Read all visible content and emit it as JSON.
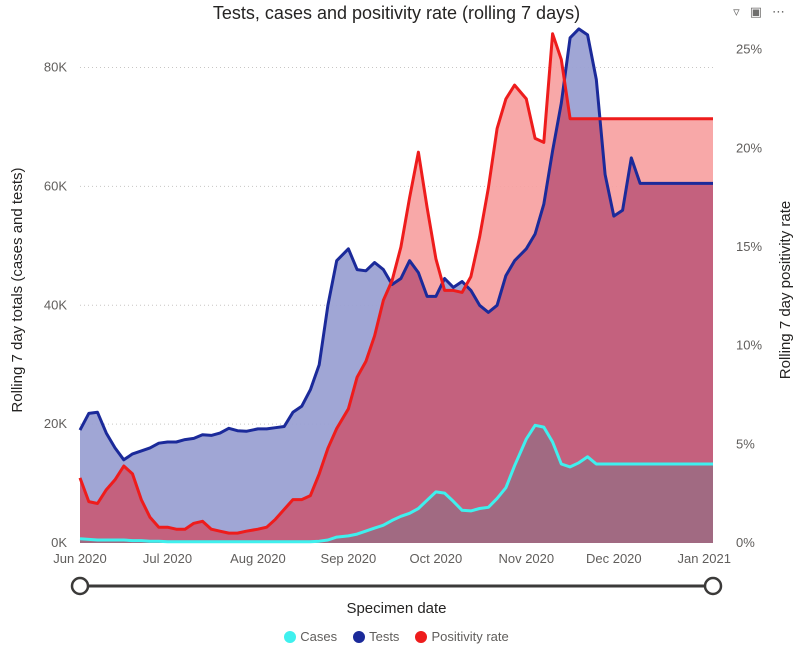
{
  "header": {
    "title": "Tests, cases and positivity rate (rolling 7 days)",
    "icons": [
      "filter-icon",
      "focus-mode-icon",
      "more-options-icon"
    ]
  },
  "colors": {
    "cases": "#3ff0ee",
    "tests": "#1b2a9a",
    "positivity": "#ee1c1c",
    "tests_fill": "#9ba1d3",
    "positivity_fill": "#f79f9f"
  },
  "chart_data": {
    "type": "area",
    "title": "Tests, cases and positivity rate (rolling 7 days)",
    "xlabel": "Specimen date",
    "ylabel_left": "Rolling 7 day totals (cases and tests)",
    "ylabel_right": "Rolling 7 day positivity rate",
    "x_ticks": [
      "Jun 2020",
      "Jul 2020",
      "Aug 2020",
      "Sep 2020",
      "Oct 2020",
      "Nov 2020",
      "Dec 2020",
      "Jan 2021"
    ],
    "x_tick_dates": [
      "2020-06-01",
      "2020-07-01",
      "2020-08-01",
      "2020-09-01",
      "2020-10-01",
      "2020-11-01",
      "2020-12-01",
      "2021-01-01"
    ],
    "y_left_ticks": [
      "0K",
      "20K",
      "40K",
      "60K",
      "80K"
    ],
    "y_left_range": [
      0,
      88000
    ],
    "y_right_ticks": [
      "0%",
      "5%",
      "10%",
      "15%",
      "20%",
      "25%"
    ],
    "y_right_range": [
      0,
      26.5
    ],
    "grid": true,
    "legend_position": "bottom-center",
    "dates": [
      "2020-06-01",
      "2020-06-04",
      "2020-06-07",
      "2020-06-10",
      "2020-06-13",
      "2020-06-16",
      "2020-06-19",
      "2020-06-22",
      "2020-06-25",
      "2020-06-28",
      "2020-07-01",
      "2020-07-04",
      "2020-07-07",
      "2020-07-10",
      "2020-07-13",
      "2020-07-16",
      "2020-07-19",
      "2020-07-22",
      "2020-07-25",
      "2020-07-28",
      "2020-08-01",
      "2020-08-04",
      "2020-08-07",
      "2020-08-10",
      "2020-08-13",
      "2020-08-16",
      "2020-08-19",
      "2020-08-22",
      "2020-08-25",
      "2020-08-28",
      "2020-09-01",
      "2020-09-04",
      "2020-09-07",
      "2020-09-10",
      "2020-09-13",
      "2020-09-16",
      "2020-09-19",
      "2020-09-22",
      "2020-09-25",
      "2020-09-28",
      "2020-10-01",
      "2020-10-04",
      "2020-10-07",
      "2020-10-10",
      "2020-10-13",
      "2020-10-16",
      "2020-10-19",
      "2020-10-22",
      "2020-10-25",
      "2020-10-28",
      "2020-11-01",
      "2020-11-04",
      "2020-11-07",
      "2020-11-10",
      "2020-11-13",
      "2020-11-16",
      "2020-11-19",
      "2020-11-22",
      "2020-11-25",
      "2020-11-28",
      "2020-12-01",
      "2020-12-04",
      "2020-12-07",
      "2020-12-10",
      "2020-12-13",
      "2020-12-16",
      "2020-12-19",
      "2020-12-22",
      "2020-12-25",
      "2020-12-28",
      "2020-12-31",
      "2021-01-03",
      "2021-01-04"
    ],
    "series": [
      {
        "name": "Tests",
        "axis": "left",
        "values": [
          19000,
          21800,
          22000,
          18500,
          16000,
          14000,
          15000,
          15500,
          16000,
          16800,
          17000,
          17000,
          17400,
          17600,
          18200,
          18100,
          18500,
          19300,
          18900,
          18800,
          19200,
          19200,
          19400,
          19600,
          22000,
          23000,
          25800,
          30000,
          40000,
          47500,
          49500,
          46000,
          45800,
          47200,
          46000,
          43500,
          44500,
          47500,
          45500,
          41500,
          41500,
          44500,
          43000,
          44000,
          42500,
          40000,
          38800,
          40000,
          45000,
          47500,
          49500,
          52000,
          57000,
          66000,
          74000,
          85000,
          86500,
          85500,
          78000,
          62000,
          55000,
          56000,
          64800,
          60500,
          60500,
          60500,
          60500,
          60500,
          60500,
          60500,
          60500,
          60500,
          60500
        ]
      },
      {
        "name": "Cases",
        "axis": "left",
        "values": [
          700,
          600,
          500,
          500,
          500,
          500,
          400,
          400,
          300,
          300,
          200,
          200,
          200,
          200,
          200,
          200,
          200,
          200,
          200,
          200,
          200,
          200,
          200,
          200,
          200,
          200,
          200,
          300,
          500,
          1000,
          1200,
          1500,
          2000,
          2500,
          3000,
          3800,
          4500,
          5000,
          5800,
          7200,
          8600,
          8400,
          7000,
          5500,
          5400,
          5800,
          6000,
          7500,
          9300,
          13000,
          17500,
          19800,
          19500,
          17000,
          13300,
          12800,
          13500,
          14500,
          13300,
          13300,
          13300,
          13300,
          13300,
          13300,
          13300,
          13300,
          13300,
          13300,
          13300,
          13300,
          13300,
          13300,
          13300
        ]
      },
      {
        "name": "Positivity rate",
        "axis": "right",
        "values": [
          3.3,
          2.1,
          2.0,
          2.7,
          3.2,
          3.9,
          3.5,
          2.2,
          1.3,
          0.8,
          0.8,
          0.7,
          0.7,
          1.0,
          1.1,
          0.7,
          0.6,
          0.5,
          0.5,
          0.6,
          0.7,
          0.8,
          1.2,
          1.7,
          2.2,
          2.2,
          2.4,
          3.5,
          4.8,
          5.8,
          6.8,
          8.4,
          9.2,
          10.5,
          12.3,
          13.3,
          15.0,
          17.5,
          19.8,
          17.0,
          14.4,
          12.8,
          12.8,
          12.7,
          13.5,
          15.5,
          18.0,
          21.0,
          22.5,
          23.2,
          22.5,
          20.5,
          20.3,
          25.8,
          24.5,
          21.5,
          21.5,
          21.5,
          21.5,
          21.5,
          21.5,
          21.5,
          21.5,
          21.5,
          21.5,
          21.5,
          21.5,
          21.5,
          21.5,
          21.5,
          21.5,
          21.5,
          21.5
        ]
      }
    ]
  },
  "legend": {
    "items": [
      {
        "label": "Cases",
        "color": "#3ff0ee"
      },
      {
        "label": "Tests",
        "color": "#1b2a9a"
      },
      {
        "label": "Positivity rate",
        "color": "#ee1c1c"
      }
    ]
  }
}
